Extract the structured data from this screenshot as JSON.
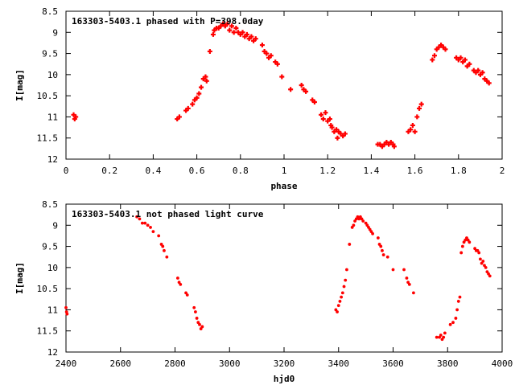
{
  "chart_data": [
    {
      "type": "scatter",
      "title": "163303-5403.1 phased with P=398.0day",
      "xlabel": "phase",
      "ylabel": "I[mag]",
      "xlim": [
        0,
        2
      ],
      "ylim": [
        12,
        8.5
      ],
      "y_inverted": true,
      "x_ticks": [
        "0",
        "0.2",
        "0.4",
        "0.6",
        "0.8",
        "1",
        "1.2",
        "1.4",
        "1.6",
        "1.8",
        "2"
      ],
      "x_tick_values": [
        0,
        0.2,
        0.4,
        0.6,
        0.8,
        1.0,
        1.2,
        1.4,
        1.6,
        1.8,
        2.0
      ],
      "y_ticks": [
        "8.5",
        "9",
        "9.5",
        "10",
        "10.5",
        "11",
        "11.5",
        "12"
      ],
      "y_tick_values": [
        8.5,
        9,
        9.5,
        10,
        10.5,
        11,
        11.5,
        12
      ],
      "grid": false,
      "marker": "plus",
      "color": "#ff0000",
      "points": [
        [
          0.035,
          10.95
        ],
        [
          0.04,
          11.05
        ],
        [
          0.045,
          11.0
        ],
        [
          0.51,
          11.05
        ],
        [
          0.52,
          11.0
        ],
        [
          0.55,
          10.85
        ],
        [
          0.56,
          10.8
        ],
        [
          0.58,
          10.7
        ],
        [
          0.59,
          10.6
        ],
        [
          0.6,
          10.55
        ],
        [
          0.61,
          10.45
        ],
        [
          0.62,
          10.3
        ],
        [
          0.63,
          10.1
        ],
        [
          0.64,
          10.05
        ],
        [
          0.645,
          10.15
        ],
        [
          0.66,
          9.45
        ],
        [
          0.675,
          9.05
        ],
        [
          0.68,
          8.95
        ],
        [
          0.69,
          8.9
        ],
        [
          0.7,
          8.9
        ],
        [
          0.71,
          8.85
        ],
        [
          0.72,
          8.8
        ],
        [
          0.73,
          8.85
        ],
        [
          0.74,
          8.8
        ],
        [
          0.75,
          8.95
        ],
        [
          0.76,
          8.85
        ],
        [
          0.77,
          9.0
        ],
        [
          0.78,
          8.9
        ],
        [
          0.79,
          9.0
        ],
        [
          0.8,
          9.05
        ],
        [
          0.81,
          9.0
        ],
        [
          0.82,
          9.1
        ],
        [
          0.83,
          9.05
        ],
        [
          0.84,
          9.15
        ],
        [
          0.85,
          9.1
        ],
        [
          0.86,
          9.2
        ],
        [
          0.87,
          9.15
        ],
        [
          0.9,
          9.3
        ],
        [
          0.91,
          9.45
        ],
        [
          0.92,
          9.5
        ],
        [
          0.93,
          9.6
        ],
        [
          0.94,
          9.55
        ],
        [
          0.96,
          9.7
        ],
        [
          0.97,
          9.75
        ],
        [
          0.99,
          10.05
        ],
        [
          1.03,
          10.35
        ],
        [
          1.08,
          10.25
        ],
        [
          1.09,
          10.35
        ],
        [
          1.1,
          10.4
        ],
        [
          1.13,
          10.6
        ],
        [
          1.14,
          10.65
        ],
        [
          1.17,
          10.95
        ],
        [
          1.18,
          11.05
        ],
        [
          1.19,
          10.9
        ],
        [
          1.2,
          11.1
        ],
        [
          1.21,
          11.05
        ],
        [
          1.215,
          11.2
        ],
        [
          1.22,
          11.25
        ],
        [
          1.23,
          11.35
        ],
        [
          1.24,
          11.3
        ],
        [
          1.245,
          11.5
        ],
        [
          1.25,
          11.35
        ],
        [
          1.26,
          11.4
        ],
        [
          1.27,
          11.45
        ],
        [
          1.28,
          11.4
        ],
        [
          1.43,
          11.65
        ],
        [
          1.44,
          11.65
        ],
        [
          1.45,
          11.7
        ],
        [
          1.46,
          11.65
        ],
        [
          1.47,
          11.6
        ],
        [
          1.48,
          11.65
        ],
        [
          1.49,
          11.6
        ],
        [
          1.5,
          11.65
        ],
        [
          1.505,
          11.7
        ],
        [
          1.57,
          11.35
        ],
        [
          1.58,
          11.3
        ],
        [
          1.59,
          11.2
        ],
        [
          1.6,
          11.35
        ],
        [
          1.61,
          11.0
        ],
        [
          1.62,
          10.8
        ],
        [
          1.63,
          10.7
        ],
        [
          1.68,
          9.65
        ],
        [
          1.69,
          9.55
        ],
        [
          1.7,
          9.4
        ],
        [
          1.71,
          9.35
        ],
        [
          1.72,
          9.3
        ],
        [
          1.73,
          9.35
        ],
        [
          1.74,
          9.4
        ],
        [
          1.79,
          9.6
        ],
        [
          1.8,
          9.65
        ],
        [
          1.81,
          9.6
        ],
        [
          1.82,
          9.7
        ],
        [
          1.83,
          9.65
        ],
        [
          1.84,
          9.8
        ],
        [
          1.85,
          9.75
        ],
        [
          1.87,
          9.9
        ],
        [
          1.88,
          9.95
        ],
        [
          1.89,
          9.9
        ],
        [
          1.9,
          10.0
        ],
        [
          1.91,
          9.95
        ],
        [
          1.92,
          10.1
        ],
        [
          1.93,
          10.15
        ],
        [
          1.94,
          10.2
        ]
      ]
    },
    {
      "type": "scatter",
      "title": "163303-5403.1 not phased light curve",
      "xlabel": "hjd0",
      "ylabel": "I[mag]",
      "xlim": [
        2400,
        4000
      ],
      "ylim": [
        12,
        8.5
      ],
      "y_inverted": true,
      "x_ticks": [
        "2400",
        "2600",
        "2800",
        "3000",
        "3200",
        "3400",
        "3600",
        "3800",
        "4000"
      ],
      "x_tick_values": [
        2400,
        2600,
        2800,
        3000,
        3200,
        3400,
        3600,
        3800,
        4000
      ],
      "y_ticks": [
        "8.5",
        "9",
        "9.5",
        "10",
        "10.5",
        "11",
        "11.5",
        "12"
      ],
      "y_tick_values": [
        8.5,
        9,
        9.5,
        10,
        10.5,
        11,
        11.5,
        12
      ],
      "grid": false,
      "marker": "dot",
      "color": "#ff0000",
      "points": [
        [
          2400,
          10.95
        ],
        [
          2402,
          11.05
        ],
        [
          2404,
          11.1
        ],
        [
          2660,
          8.8
        ],
        [
          2670,
          8.85
        ],
        [
          2680,
          8.95
        ],
        [
          2690,
          8.95
        ],
        [
          2700,
          9.0
        ],
        [
          2710,
          9.05
        ],
        [
          2720,
          9.15
        ],
        [
          2740,
          9.25
        ],
        [
          2750,
          9.45
        ],
        [
          2755,
          9.5
        ],
        [
          2760,
          9.6
        ],
        [
          2770,
          9.75
        ],
        [
          2810,
          10.25
        ],
        [
          2815,
          10.35
        ],
        [
          2820,
          10.4
        ],
        [
          2840,
          10.6
        ],
        [
          2845,
          10.65
        ],
        [
          2870,
          10.95
        ],
        [
          2875,
          11.05
        ],
        [
          2880,
          11.2
        ],
        [
          2885,
          11.3
        ],
        [
          2890,
          11.35
        ],
        [
          2895,
          11.45
        ],
        [
          2900,
          11.4
        ],
        [
          3390,
          11.0
        ],
        [
          3395,
          11.05
        ],
        [
          3400,
          10.9
        ],
        [
          3405,
          10.8
        ],
        [
          3410,
          10.7
        ],
        [
          3415,
          10.6
        ],
        [
          3420,
          10.45
        ],
        [
          3425,
          10.3
        ],
        [
          3430,
          10.05
        ],
        [
          3440,
          9.45
        ],
        [
          3450,
          9.05
        ],
        [
          3455,
          9.0
        ],
        [
          3460,
          8.9
        ],
        [
          3465,
          8.85
        ],
        [
          3470,
          8.8
        ],
        [
          3475,
          8.85
        ],
        [
          3480,
          8.8
        ],
        [
          3485,
          8.85
        ],
        [
          3490,
          8.9
        ],
        [
          3500,
          8.95
        ],
        [
          3505,
          9.0
        ],
        [
          3510,
          9.05
        ],
        [
          3515,
          9.1
        ],
        [
          3520,
          9.15
        ],
        [
          3525,
          9.2
        ],
        [
          3545,
          9.3
        ],
        [
          3550,
          9.45
        ],
        [
          3555,
          9.5
        ],
        [
          3560,
          9.6
        ],
        [
          3565,
          9.7
        ],
        [
          3580,
          9.75
        ],
        [
          3600,
          10.05
        ],
        [
          3640,
          10.05
        ],
        [
          3650,
          10.25
        ],
        [
          3655,
          10.35
        ],
        [
          3660,
          10.4
        ],
        [
          3675,
          10.6
        ],
        [
          3760,
          11.65
        ],
        [
          3770,
          11.65
        ],
        [
          3775,
          11.6
        ],
        [
          3780,
          11.7
        ],
        [
          3785,
          11.65
        ],
        [
          3790,
          11.55
        ],
        [
          3810,
          11.35
        ],
        [
          3820,
          11.3
        ],
        [
          3830,
          11.2
        ],
        [
          3835,
          11.0
        ],
        [
          3840,
          10.8
        ],
        [
          3845,
          10.7
        ],
        [
          3850,
          9.65
        ],
        [
          3855,
          9.5
        ],
        [
          3860,
          9.4
        ],
        [
          3865,
          9.35
        ],
        [
          3870,
          9.3
        ],
        [
          3875,
          9.35
        ],
        [
          3880,
          9.4
        ],
        [
          3900,
          9.55
        ],
        [
          3905,
          9.6
        ],
        [
          3910,
          9.6
        ],
        [
          3915,
          9.65
        ],
        [
          3920,
          9.8
        ],
        [
          3925,
          9.9
        ],
        [
          3930,
          9.85
        ],
        [
          3935,
          9.95
        ],
        [
          3940,
          10.0
        ],
        [
          3945,
          10.1
        ],
        [
          3950,
          10.15
        ],
        [
          3955,
          10.2
        ]
      ]
    }
  ]
}
